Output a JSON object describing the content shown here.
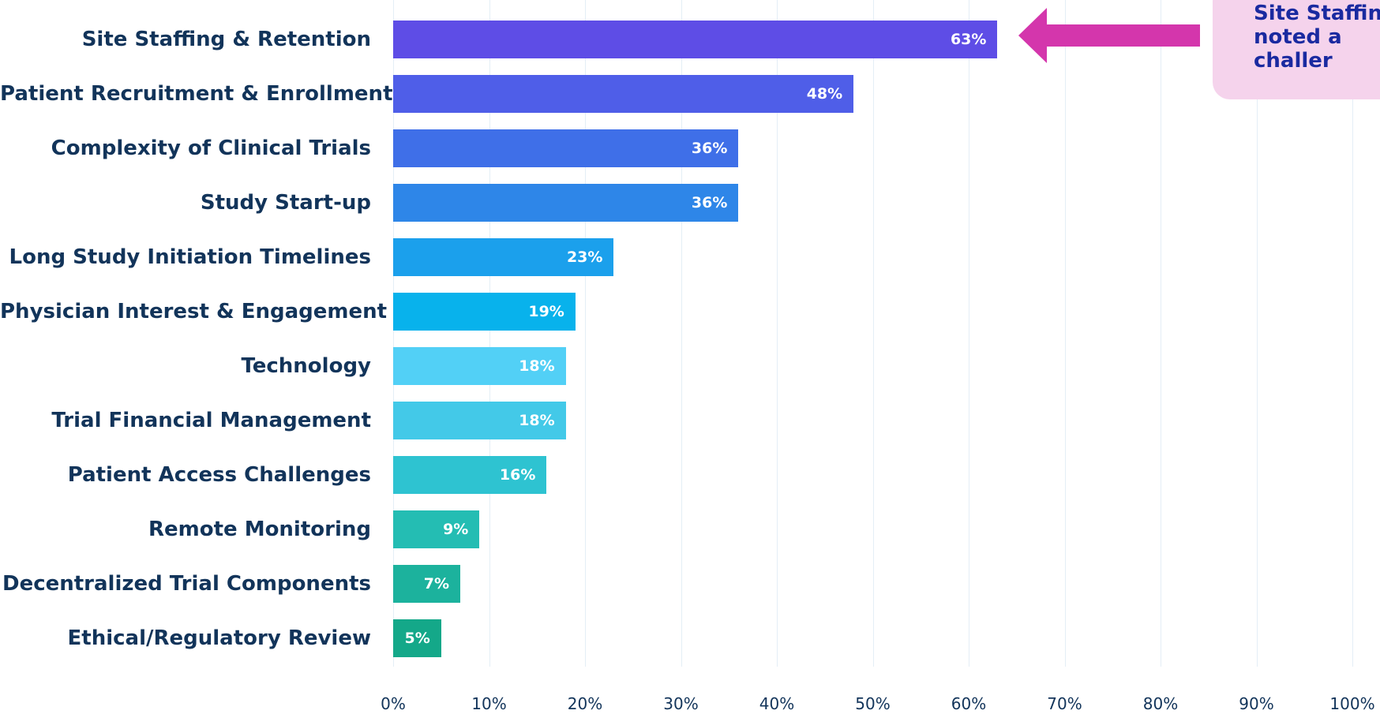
{
  "chart_data": {
    "type": "bar",
    "orientation": "horizontal",
    "categories": [
      "Site Staffing & Retention",
      "Patient Recruitment & Enrollment",
      "Complexity of Clinical Trials",
      "Study Start-up",
      "Long Study Initiation Timelines",
      "Physician Interest & Engagement",
      "Technology",
      "Trial Financial Management",
      "Patient Access Challenges",
      "Remote Monitoring",
      "Decentralized Trial Components",
      "Ethical/Regulatory Review"
    ],
    "values": [
      63,
      48,
      36,
      36,
      23,
      19,
      18,
      18,
      16,
      9,
      7,
      5
    ],
    "value_labels": [
      "63%",
      "48%",
      "36%",
      "36%",
      "23%",
      "19%",
      "18%",
      "18%",
      "16%",
      "9%",
      "7%",
      "5%"
    ],
    "colors": [
      "#5e4de6",
      "#4f5ee8",
      "#3f6fe8",
      "#2e86e8",
      "#1ba0ec",
      "#08b2ec",
      "#52d0f6",
      "#43c9e8",
      "#2ec3d1",
      "#24bdb3",
      "#1cb29d",
      "#14a889"
    ],
    "xlim": [
      0,
      100
    ],
    "xticks": [
      0,
      10,
      20,
      30,
      40,
      50,
      60,
      70,
      80,
      90,
      100
    ],
    "xtick_labels": [
      "0%",
      "10%",
      "20%",
      "30%",
      "40%",
      "50%",
      "60%",
      "70%",
      "80%",
      "90%",
      "100%"
    ],
    "title": "",
    "xlabel": "",
    "ylabel": "",
    "grid": "vertical",
    "annotation": {
      "text": "Site Staffin\nnoted a\nchaller",
      "points_to": "Site Staffing & Retention",
      "arrow_color": "#d436ac",
      "box_color": "#f5d3ec"
    }
  }
}
